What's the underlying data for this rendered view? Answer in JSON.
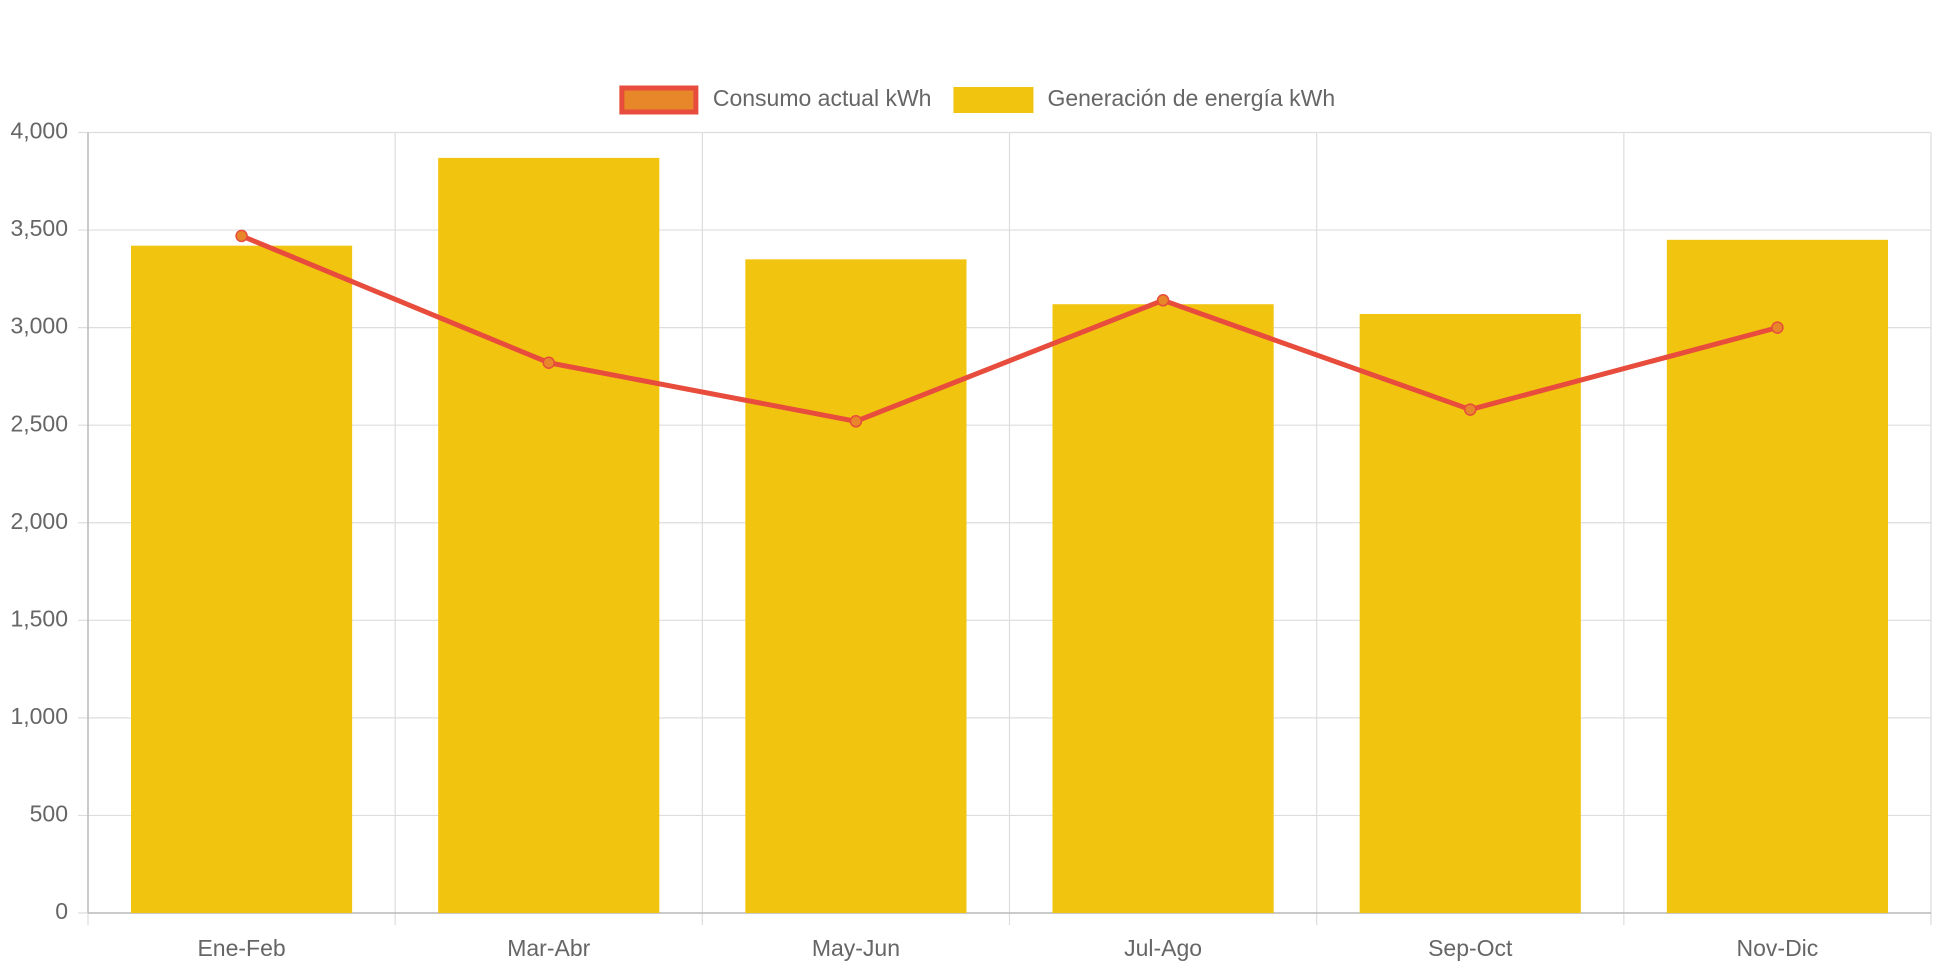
{
  "chart_data": {
    "type": "bar",
    "categories": [
      "Ene-Feb",
      "Mar-Abr",
      "May-Jun",
      "Jul-Ago",
      "Sep-Oct",
      "Nov-Dic"
    ],
    "series": [
      {
        "name": "Consumo actual kWh",
        "type": "line",
        "color": "#e74c3c",
        "point_color": "#e8872a",
        "values": [
          3470,
          2820,
          2520,
          3140,
          2580,
          3000
        ]
      },
      {
        "name": "Generación de energía kWh",
        "type": "bar",
        "color": "#f1c40f",
        "values": [
          3420,
          3870,
          3350,
          3120,
          3070,
          3450
        ]
      }
    ],
    "ylim": [
      0,
      4000
    ],
    "yticks": [
      0,
      500,
      {
        "value": 1000,
        "label": "1,000"
      },
      {
        "value": 1500,
        "label": "1,500"
      },
      {
        "value": 2000,
        "label": "2,000"
      },
      {
        "value": 2500,
        "label": "2,500"
      },
      {
        "value": 3000,
        "label": "3,000"
      },
      {
        "value": 3500,
        "label": "3,500"
      },
      {
        "value": 4000,
        "label": "4,000"
      }
    ],
    "grid": true,
    "legend": "top"
  }
}
